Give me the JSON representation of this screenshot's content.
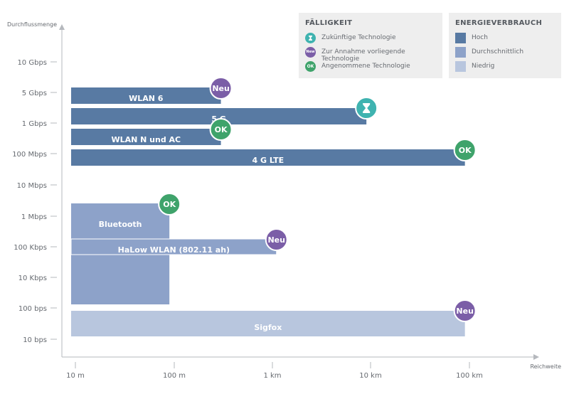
{
  "chart_data": {
    "type": "bar",
    "orientation": "horizontal-range",
    "x_axis": {
      "label": "Reichweite",
      "scale": "log",
      "ticks": [
        "10 m",
        "100 m",
        "1 km",
        "10 km",
        "100 km"
      ]
    },
    "y_axis": {
      "label": "Durchflussmenge",
      "scale": "log",
      "ticks": [
        "10 Gbps",
        "5 Gbps",
        "1 Gbps",
        "100 Mbps",
        "10 Mbps",
        "1 Mbps",
        "100 Kbps",
        "10 Kbps",
        "100 bps",
        "10 bps"
      ]
    },
    "bars": [
      {
        "label": "WLAN 6",
        "x_start": "10 m",
        "x_end_m": 300,
        "y": "5 Gbps",
        "energy": "Hoch",
        "status": "Neu"
      },
      {
        "label": "5 G",
        "x_start": "10 m",
        "x_end_m": 9000,
        "y": "between 5 Gbps and 1 Gbps",
        "energy": "Hoch",
        "status": "Zukünftige Technologie"
      },
      {
        "label": "WLAN N und AC",
        "x_start": "10 m",
        "x_end_m": 300,
        "y": "between 1 Gbps and 100 Mbps",
        "energy": "Hoch",
        "status": "OK"
      },
      {
        "label": "4 G LTE",
        "x_start": "10 m",
        "x_end_m": 90000,
        "y": "between 100 Mbps and 10 Mbps",
        "energy": "Hoch",
        "status": "OK"
      },
      {
        "label": "Bluetooth",
        "x_start": "10 m",
        "x_end_m": 90,
        "y_range": [
          "1 Mbps",
          "100 bps"
        ],
        "energy": "Durchschnittlich",
        "status": "OK"
      },
      {
        "label": "HaLow WLAN (802.11 ah)",
        "x_start": "10 m",
        "x_end_m": 1100,
        "y": "100 Kbps",
        "energy": "Durchschnittlich",
        "status": "Neu"
      },
      {
        "label": "Sigfox",
        "x_start": "10 m",
        "x_end_m": 90000,
        "y_range": [
          "100 bps",
          "10 bps"
        ],
        "energy": "Niedrig",
        "status": "Neu"
      }
    ],
    "legend_placement": "top-right",
    "grid": false
  },
  "legend": {
    "faelligkeit": {
      "title": "FÄLLIGKEIT",
      "items": [
        {
          "label": "Zukünftige Technologie",
          "icon": "hourglass-icon",
          "badge_text": "",
          "color": "#3fb3b0"
        },
        {
          "label": "Zur Annahme vorliegende Technologie",
          "icon": "new-badge-icon",
          "badge_text": "New",
          "color": "#7b5ea7"
        },
        {
          "label": "Angenommene Technologie",
          "icon": "ok-badge-icon",
          "badge_text": "OK",
          "color": "#3fa36b"
        }
      ]
    },
    "energie": {
      "title": "ENERGIEVERBRAUCH",
      "items": [
        {
          "label": "Hoch",
          "color": "#587aa3"
        },
        {
          "label": "Durchschnittlich",
          "color": "#8da2c9"
        },
        {
          "label": "Niedrig",
          "color": "#b8c6de"
        }
      ]
    }
  },
  "badges": {
    "new_text": "Neu",
    "ok_text": "OK"
  },
  "colors": {
    "high": "#587aa3",
    "medium": "#8da2c9",
    "low": "#b8c6de",
    "future": "#3fb3b0",
    "new": "#7b5ea7",
    "ok": "#3fa36b",
    "axis": "#b5b8bd",
    "tick_text": "#666a70"
  }
}
